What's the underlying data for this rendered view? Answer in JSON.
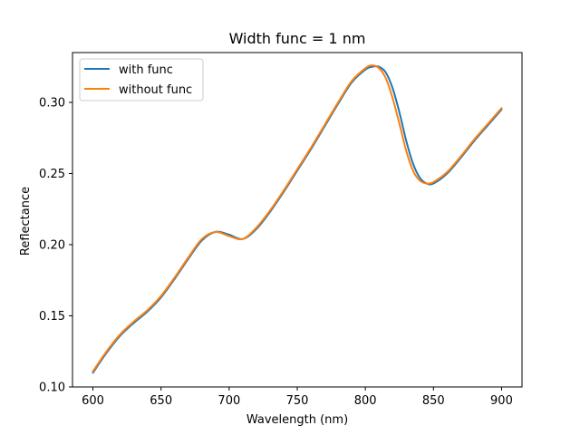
{
  "chart_data": {
    "type": "line",
    "title": "Width func = 1 nm",
    "xlabel": "Wavelength (nm)",
    "ylabel": "Reflectance",
    "xlim": [
      585,
      915
    ],
    "ylim": [
      0.1,
      0.335
    ],
    "xticks": [
      600,
      650,
      700,
      750,
      800,
      850,
      900
    ],
    "yticks": [
      0.1,
      0.15,
      0.2,
      0.25,
      0.3
    ],
    "xtick_labels": [
      "600",
      "650",
      "700",
      "750",
      "800",
      "850",
      "900"
    ],
    "ytick_labels": [
      "0.10",
      "0.15",
      "0.20",
      "0.25",
      "0.30"
    ],
    "grid": false,
    "legend_position": "top-left",
    "series": [
      {
        "name": "with func",
        "color": "#1f77b4",
        "x": [
          600,
          610,
          620,
          630,
          640,
          650,
          660,
          670,
          680,
          690,
          700,
          710,
          720,
          730,
          740,
          750,
          760,
          770,
          780,
          790,
          800,
          805,
          810,
          815,
          820,
          825,
          830,
          835,
          840,
          845,
          850,
          860,
          870,
          880,
          890,
          900
        ],
        "y": [
          0.11,
          0.124,
          0.136,
          0.145,
          0.153,
          0.163,
          0.176,
          0.19,
          0.203,
          0.209,
          0.207,
          0.204,
          0.211,
          0.223,
          0.237,
          0.252,
          0.267,
          0.283,
          0.299,
          0.314,
          0.323,
          0.325,
          0.325,
          0.321,
          0.31,
          0.293,
          0.273,
          0.257,
          0.247,
          0.243,
          0.243,
          0.25,
          0.261,
          0.273,
          0.284,
          0.295
        ]
      },
      {
        "name": "without func",
        "color": "#ff7f0e",
        "x": [
          600,
          610,
          620,
          630,
          640,
          650,
          660,
          670,
          680,
          690,
          700,
          710,
          720,
          730,
          740,
          750,
          760,
          770,
          780,
          790,
          800,
          805,
          810,
          815,
          820,
          825,
          830,
          835,
          840,
          845,
          850,
          860,
          870,
          880,
          890,
          900
        ],
        "y": [
          0.111,
          0.125,
          0.137,
          0.146,
          0.154,
          0.164,
          0.177,
          0.191,
          0.204,
          0.209,
          0.206,
          0.204,
          0.212,
          0.224,
          0.238,
          0.253,
          0.268,
          0.284,
          0.3,
          0.315,
          0.324,
          0.326,
          0.324,
          0.317,
          0.303,
          0.285,
          0.266,
          0.252,
          0.245,
          0.243,
          0.244,
          0.251,
          0.262,
          0.274,
          0.285,
          0.296
        ]
      }
    ]
  }
}
